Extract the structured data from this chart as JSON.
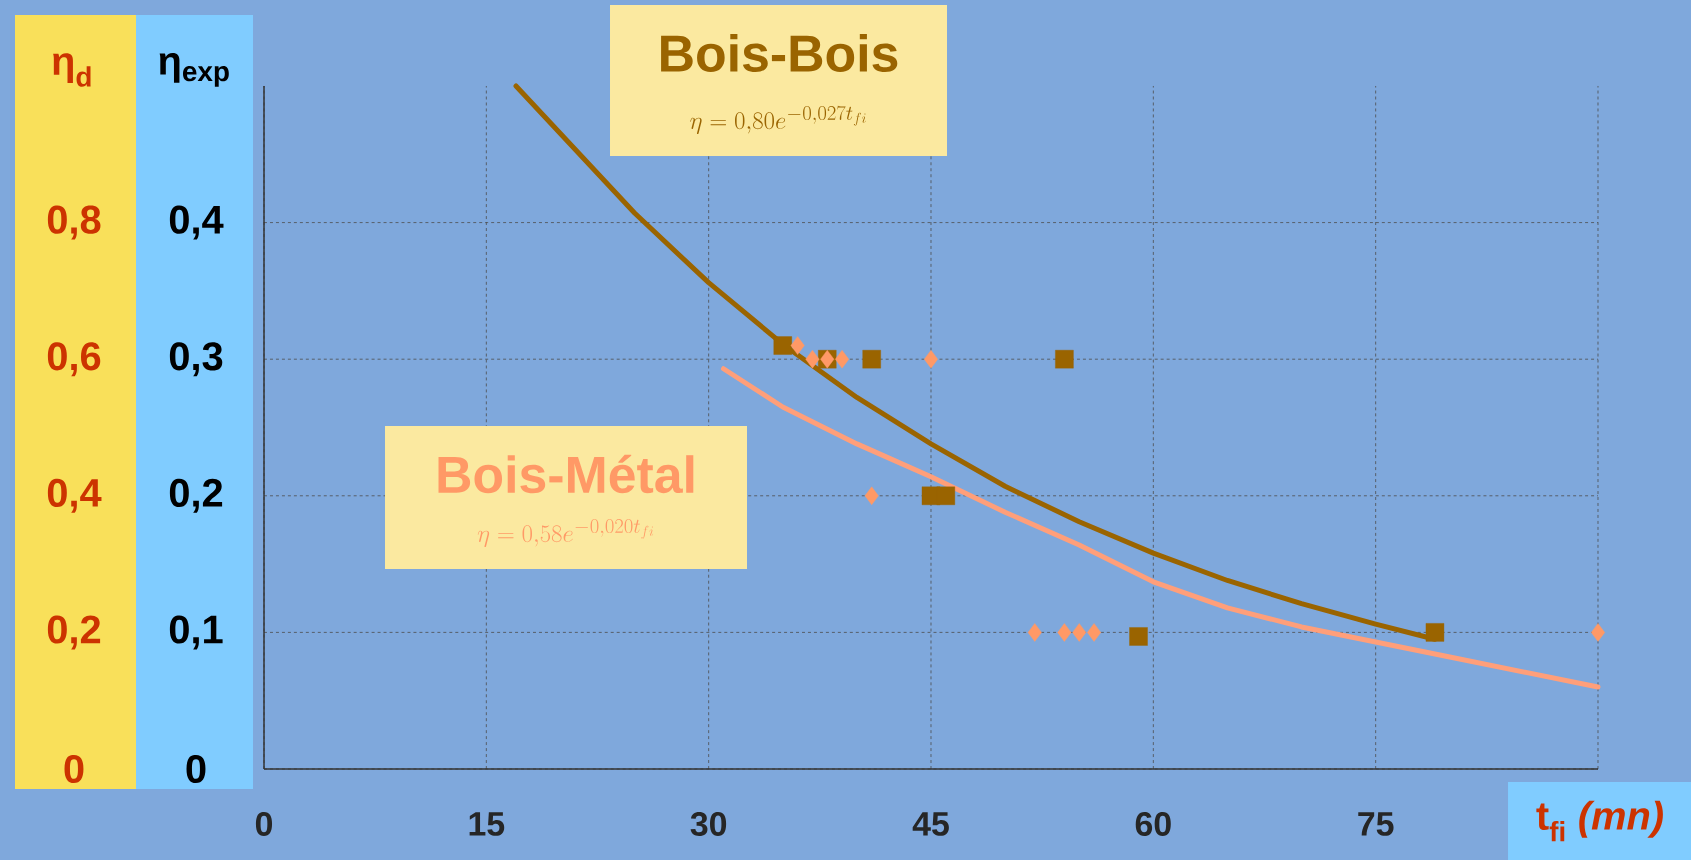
{
  "chart_data": {
    "type": "scatter",
    "xlabel": "t$_{fi}$ *(mn)*",
    "ylabel": "η$_{exp}$",
    "y2label": "η$_{d}$",
    "xlim": [
      0,
      90
    ],
    "xticks": [
      0,
      15,
      30,
      45,
      60,
      75,
      {
        "value": 90,
        "label": null
      }
    ],
    "ylim": [
      0,
      0.5
    ],
    "yticks": [
      0,
      {
        "value": 0.1,
        "label": "0,1"
      },
      {
        "value": 0.2,
        "label": "0,2"
      },
      {
        "value": 0.3,
        "label": "0,3"
      },
      {
        "value": 0.4,
        "label": "0,4"
      }
    ],
    "y2lim": [
      0,
      1
    ],
    "y2ticks": [
      0,
      {
        "value": 0.2,
        "label": "0,2"
      },
      {
        "value": 0.4,
        "label": "0,4"
      },
      {
        "value": 0.6,
        "label": "0,6"
      },
      {
        "value": 0.8,
        "label": "0,8"
      }
    ],
    "grid": true,
    "legend": false,
    "series": [
      {
        "name": "Bois-Bois",
        "marker": "square",
        "color": "#9a6400",
        "x": [
          35,
          38,
          41,
          54,
          45,
          46,
          59,
          79
        ],
        "values": [
          0.31,
          0.3,
          0.3,
          0.3,
          0.2,
          0.2,
          0.097,
          0.1
        ]
      },
      {
        "type": "line",
        "marker": "none",
        "color": "#9a6400",
        "x": [
          17,
          25,
          30,
          35,
          40,
          45,
          50,
          55,
          60,
          65,
          70,
          75,
          79
        ],
        "values": [
          0.5,
          0.407,
          0.356,
          0.311,
          0.272,
          0.238,
          0.207,
          0.181,
          0.158,
          0.138,
          0.121,
          0.106,
          0.095
        ]
      },
      {
        "name": "Bois-Métal",
        "marker": "diamond",
        "color": "#ff9966",
        "x": [
          36,
          37,
          38,
          39,
          45,
          41,
          52,
          54,
          55,
          56,
          90
        ],
        "values": [
          0.31,
          0.3,
          0.3,
          0.3,
          0.3,
          0.2,
          0.1,
          0.1,
          0.1,
          0.1,
          0.1
        ]
      },
      {
        "type": "line",
        "marker": "none",
        "color": "#ff9f7a",
        "x": [
          31,
          35,
          40,
          45,
          50,
          55,
          60,
          65,
          70,
          75,
          80,
          85,
          90
        ],
        "values": [
          0.293,
          0.265,
          0.238,
          0.214,
          0.188,
          0.164,
          0.137,
          0.118,
          0.104,
          0.093,
          0.082,
          0.071,
          0.06
        ]
      }
    ],
    "annotations": [
      "\\eta = 0{,}80e^{-0{,}027t_{fi}}",
      "\\eta = 0{,}58e^{-0{,}020t_{fi}}"
    ]
  }
}
